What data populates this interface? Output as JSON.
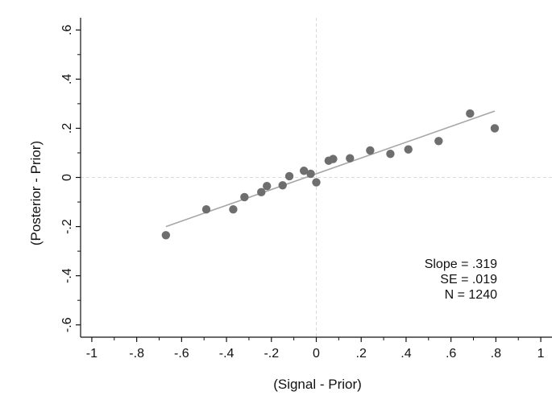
{
  "chart_data": {
    "type": "scatter",
    "title": "",
    "xlabel": "(Signal - Prior)",
    "ylabel": "(Posterior - Prior)",
    "xlim": [
      -1.05,
      1.05
    ],
    "ylim": [
      -0.65,
      0.65
    ],
    "x_ticks": [
      -1,
      -0.8,
      -0.6,
      -0.4,
      -0.2,
      0,
      0.2,
      0.4,
      0.6,
      0.8,
      1
    ],
    "x_tick_labels": [
      "-1",
      "-.8",
      "-.6",
      "-.4",
      "-.2",
      "0",
      ".2",
      ".4",
      ".6",
      ".8",
      "1"
    ],
    "y_ticks": [
      -0.6,
      -0.4,
      -0.2,
      0,
      0.2,
      0.4,
      0.6
    ],
    "y_tick_labels": [
      "-.6",
      "-.4",
      "-.2",
      "0",
      ".2",
      ".4",
      ".6"
    ],
    "grid": false,
    "reference_lines": {
      "x": 0,
      "y": 0,
      "style": "dashed",
      "color": "#d9d9d9"
    },
    "points": [
      {
        "x": -0.67,
        "y": -0.235
      },
      {
        "x": -0.49,
        "y": -0.13
      },
      {
        "x": -0.37,
        "y": -0.13
      },
      {
        "x": -0.32,
        "y": -0.08
      },
      {
        "x": -0.245,
        "y": -0.06
      },
      {
        "x": -0.22,
        "y": -0.035
      },
      {
        "x": -0.15,
        "y": -0.032
      },
      {
        "x": -0.12,
        "y": 0.005
      },
      {
        "x": -0.055,
        "y": 0.027
      },
      {
        "x": -0.025,
        "y": 0.015
      },
      {
        "x": 0.0,
        "y": -0.02
      },
      {
        "x": 0.055,
        "y": 0.068
      },
      {
        "x": 0.075,
        "y": 0.075
      },
      {
        "x": 0.15,
        "y": 0.078
      },
      {
        "x": 0.24,
        "y": 0.11
      },
      {
        "x": 0.33,
        "y": 0.096
      },
      {
        "x": 0.41,
        "y": 0.114
      },
      {
        "x": 0.545,
        "y": 0.148
      },
      {
        "x": 0.685,
        "y": 0.26
      },
      {
        "x": 0.795,
        "y": 0.2
      }
    ],
    "fit_line": {
      "x": [
        -0.67,
        0.795
      ],
      "y": [
        -0.2,
        0.27
      ]
    },
    "colors": {
      "points": "#6e6e6e",
      "fit_line": "#a6a6a6",
      "axes": "#111111",
      "reference": "#d9d9d9"
    },
    "annotations": [
      "Slope = .319",
      "SE = .019",
      "N = 1240"
    ]
  }
}
